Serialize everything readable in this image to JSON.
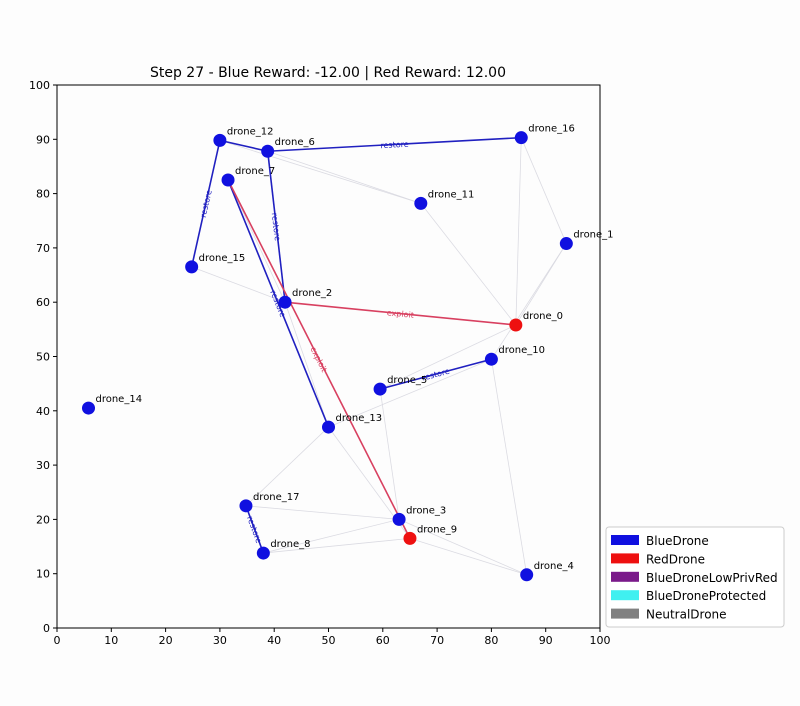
{
  "chart_data": {
    "type": "scatter",
    "title": "Step 27 - Blue Reward: -12.00 | Red Reward: 12.00",
    "xlabel": "",
    "ylabel": "",
    "xlim": [
      0,
      100
    ],
    "ylim": [
      0,
      100
    ],
    "xticks": [
      "0",
      "10",
      "20",
      "30",
      "40",
      "50",
      "60",
      "70",
      "80",
      "90",
      "100"
    ],
    "yticks": [
      "0",
      "10",
      "20",
      "30",
      "40",
      "50",
      "60",
      "70",
      "80",
      "90",
      "100"
    ],
    "grid": false,
    "legend_position": "bottom-right (outside)",
    "colors": {
      "BlueDrone": "#1010e0",
      "RedDrone": "#ee1010",
      "BlueDroneLowPrivRed": "#7a1a8a",
      "BlueDroneProtected": "#40f0f0",
      "NeutralDrone": "#808080",
      "blue_edge": "#2020c0",
      "red_edge": "#d84060",
      "faint_edge": "#d8d8e0"
    },
    "legend": [
      {
        "label": "BlueDrone",
        "color": "#1010e0"
      },
      {
        "label": "RedDrone",
        "color": "#ee1010"
      },
      {
        "label": "BlueDroneLowPrivRed",
        "color": "#7a1a8a"
      },
      {
        "label": "BlueDroneProtected",
        "color": "#40f0f0"
      },
      {
        "label": "NeutralDrone",
        "color": "#808080"
      }
    ],
    "nodes": [
      {
        "id": "drone_0",
        "label": "drone_0",
        "x": 84.5,
        "y": 55.8,
        "type": "RedDrone"
      },
      {
        "id": "drone_1",
        "label": "drone_1",
        "x": 93.8,
        "y": 70.8,
        "type": "BlueDrone"
      },
      {
        "id": "drone_2",
        "label": "drone_2",
        "x": 42.0,
        "y": 60.0,
        "type": "BlueDrone"
      },
      {
        "id": "drone_3",
        "label": "drone_3",
        "x": 63.0,
        "y": 20.0,
        "type": "BlueDrone"
      },
      {
        "id": "drone_4",
        "label": "drone_4",
        "x": 86.5,
        "y": 9.8,
        "type": "BlueDrone"
      },
      {
        "id": "drone_5",
        "label": "drone_5",
        "x": 59.5,
        "y": 44.0,
        "type": "BlueDrone"
      },
      {
        "id": "drone_6",
        "label": "drone_6",
        "x": 38.8,
        "y": 87.8,
        "type": "BlueDrone"
      },
      {
        "id": "drone_7",
        "label": "drone_7",
        "x": 31.5,
        "y": 82.5,
        "type": "BlueDrone"
      },
      {
        "id": "drone_8",
        "label": "drone_8",
        "x": 38.0,
        "y": 13.8,
        "type": "BlueDrone"
      },
      {
        "id": "drone_9",
        "label": "drone_9",
        "x": 65.0,
        "y": 16.5,
        "type": "RedDrone"
      },
      {
        "id": "drone_10",
        "label": "drone_10",
        "x": 80.0,
        "y": 49.5,
        "type": "BlueDrone"
      },
      {
        "id": "drone_11",
        "label": "drone_11",
        "x": 67.0,
        "y": 78.2,
        "type": "BlueDrone"
      },
      {
        "id": "drone_12",
        "label": "drone_12",
        "x": 30.0,
        "y": 89.8,
        "type": "BlueDrone"
      },
      {
        "id": "drone_13",
        "label": "drone_13",
        "x": 50.0,
        "y": 37.0,
        "type": "BlueDrone"
      },
      {
        "id": "drone_14",
        "label": "drone_14",
        "x": 5.8,
        "y": 40.5,
        "type": "BlueDrone"
      },
      {
        "id": "drone_15",
        "label": "drone_15",
        "x": 24.8,
        "y": 66.5,
        "type": "BlueDrone"
      },
      {
        "id": "drone_16",
        "label": "drone_16",
        "x": 85.5,
        "y": 90.3,
        "type": "BlueDrone"
      },
      {
        "id": "drone_17",
        "label": "drone_17",
        "x": 34.8,
        "y": 22.5,
        "type": "BlueDrone"
      }
    ],
    "edges": [
      {
        "from": "drone_6",
        "to": "drone_16",
        "kind": "blue",
        "label": "restore"
      },
      {
        "from": "drone_12",
        "to": "drone_6",
        "kind": "blue",
        "label": ""
      },
      {
        "from": "drone_12",
        "to": "drone_15",
        "kind": "blue",
        "label": "restore"
      },
      {
        "from": "drone_6",
        "to": "drone_2",
        "kind": "blue",
        "label": "restore"
      },
      {
        "from": "drone_7",
        "to": "drone_13",
        "kind": "blue",
        "label": "restore"
      },
      {
        "from": "drone_5",
        "to": "drone_10",
        "kind": "blue",
        "label": "restore"
      },
      {
        "from": "drone_17",
        "to": "drone_8",
        "kind": "blue",
        "label": "restore"
      },
      {
        "from": "drone_2",
        "to": "drone_0",
        "kind": "red",
        "label": "exploit"
      },
      {
        "from": "drone_7",
        "to": "drone_9",
        "kind": "red",
        "label": "exploit"
      },
      {
        "from": "drone_12",
        "to": "drone_11",
        "kind": "faint",
        "label": ""
      },
      {
        "from": "drone_6",
        "to": "drone_11",
        "kind": "faint",
        "label": ""
      },
      {
        "from": "drone_11",
        "to": "drone_0",
        "kind": "faint",
        "label": ""
      },
      {
        "from": "drone_16",
        "to": "drone_1",
        "kind": "faint",
        "label": ""
      },
      {
        "from": "drone_1",
        "to": "drone_0",
        "kind": "faint",
        "label": ""
      },
      {
        "from": "drone_1",
        "to": "drone_10",
        "kind": "faint",
        "label": ""
      },
      {
        "from": "drone_15",
        "to": "drone_2",
        "kind": "faint",
        "label": ""
      },
      {
        "from": "drone_0",
        "to": "drone_5",
        "kind": "faint",
        "label": ""
      },
      {
        "from": "drone_10",
        "to": "drone_13",
        "kind": "faint",
        "label": ""
      },
      {
        "from": "drone_5",
        "to": "drone_3",
        "kind": "faint",
        "label": ""
      },
      {
        "from": "drone_13",
        "to": "drone_17",
        "kind": "faint",
        "label": ""
      },
      {
        "from": "drone_17",
        "to": "drone_3",
        "kind": "faint",
        "label": ""
      },
      {
        "from": "drone_8",
        "to": "drone_3",
        "kind": "faint",
        "label": ""
      },
      {
        "from": "drone_8",
        "to": "drone_9",
        "kind": "faint",
        "label": ""
      },
      {
        "from": "drone_3",
        "to": "drone_4",
        "kind": "faint",
        "label": ""
      },
      {
        "from": "drone_9",
        "to": "drone_4",
        "kind": "faint",
        "label": ""
      },
      {
        "from": "drone_10",
        "to": "drone_4",
        "kind": "faint",
        "label": ""
      },
      {
        "from": "drone_13",
        "to": "drone_9",
        "kind": "faint",
        "label": ""
      },
      {
        "from": "drone_16",
        "to": "drone_0",
        "kind": "faint",
        "label": ""
      },
      {
        "from": "drone_7",
        "to": "drone_2",
        "kind": "faint",
        "label": ""
      },
      {
        "from": "drone_2",
        "to": "drone_13",
        "kind": "faint",
        "label": ""
      }
    ]
  }
}
